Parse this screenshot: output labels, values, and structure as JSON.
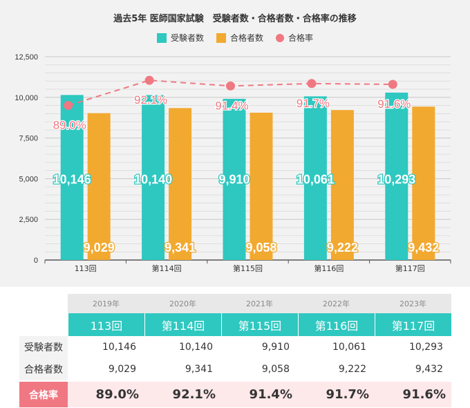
{
  "chart_data": {
    "type": "bar",
    "title": "過去5年 医師国家試験　受験者数・合格者数・合格率の推移",
    "categories": [
      "113回",
      "第114回",
      "第115回",
      "第116回",
      "第117回"
    ],
    "series": [
      {
        "name": "受験者数",
        "values": [
          10146,
          10140,
          9910,
          10061,
          10293
        ],
        "color": "#2ec8c0",
        "labels": [
          "10,146",
          "10,140",
          "9,910",
          "10,061",
          "10,293"
        ]
      },
      {
        "name": "合格者数",
        "values": [
          9029,
          9341,
          9058,
          9222,
          9432
        ],
        "color": "#f2a930",
        "labels": [
          "9,029",
          "9,341",
          "9,058",
          "9,222",
          "9,432"
        ]
      },
      {
        "name": "合格率",
        "type": "line",
        "values": [
          89.0,
          92.1,
          91.4,
          91.7,
          91.6
        ],
        "color": "#f07882",
        "labels": [
          "89.0%",
          "92.1%",
          "91.4%",
          "91.7%",
          "91.6%"
        ]
      }
    ],
    "ylim": [
      0,
      12500
    ],
    "yticks": [
      "0",
      "2,500",
      "5,000",
      "7,500",
      "10,000",
      "12,500"
    ],
    "ytick_values": [
      0,
      2500,
      5000,
      7500,
      10000,
      12500
    ],
    "grid": true,
    "legend_position": "top-center"
  },
  "table": {
    "years": [
      "2019年",
      "2020年",
      "2021年",
      "2022年",
      "2023年"
    ],
    "exams": [
      "113回",
      "第114回",
      "第115回",
      "第116回",
      "第117回"
    ],
    "examinees_label": "受験者数",
    "examinees": [
      "10,146",
      "10,140",
      "9,910",
      "10,061",
      "10,293"
    ],
    "passers_label": "合格者数",
    "passers": [
      "9,029",
      "9,341",
      "9,058",
      "9,222",
      "9,432"
    ],
    "rate_label": "合格率",
    "rates": [
      "89.0%",
      "92.1%",
      "91.4%",
      "91.7%",
      "91.6%"
    ]
  }
}
